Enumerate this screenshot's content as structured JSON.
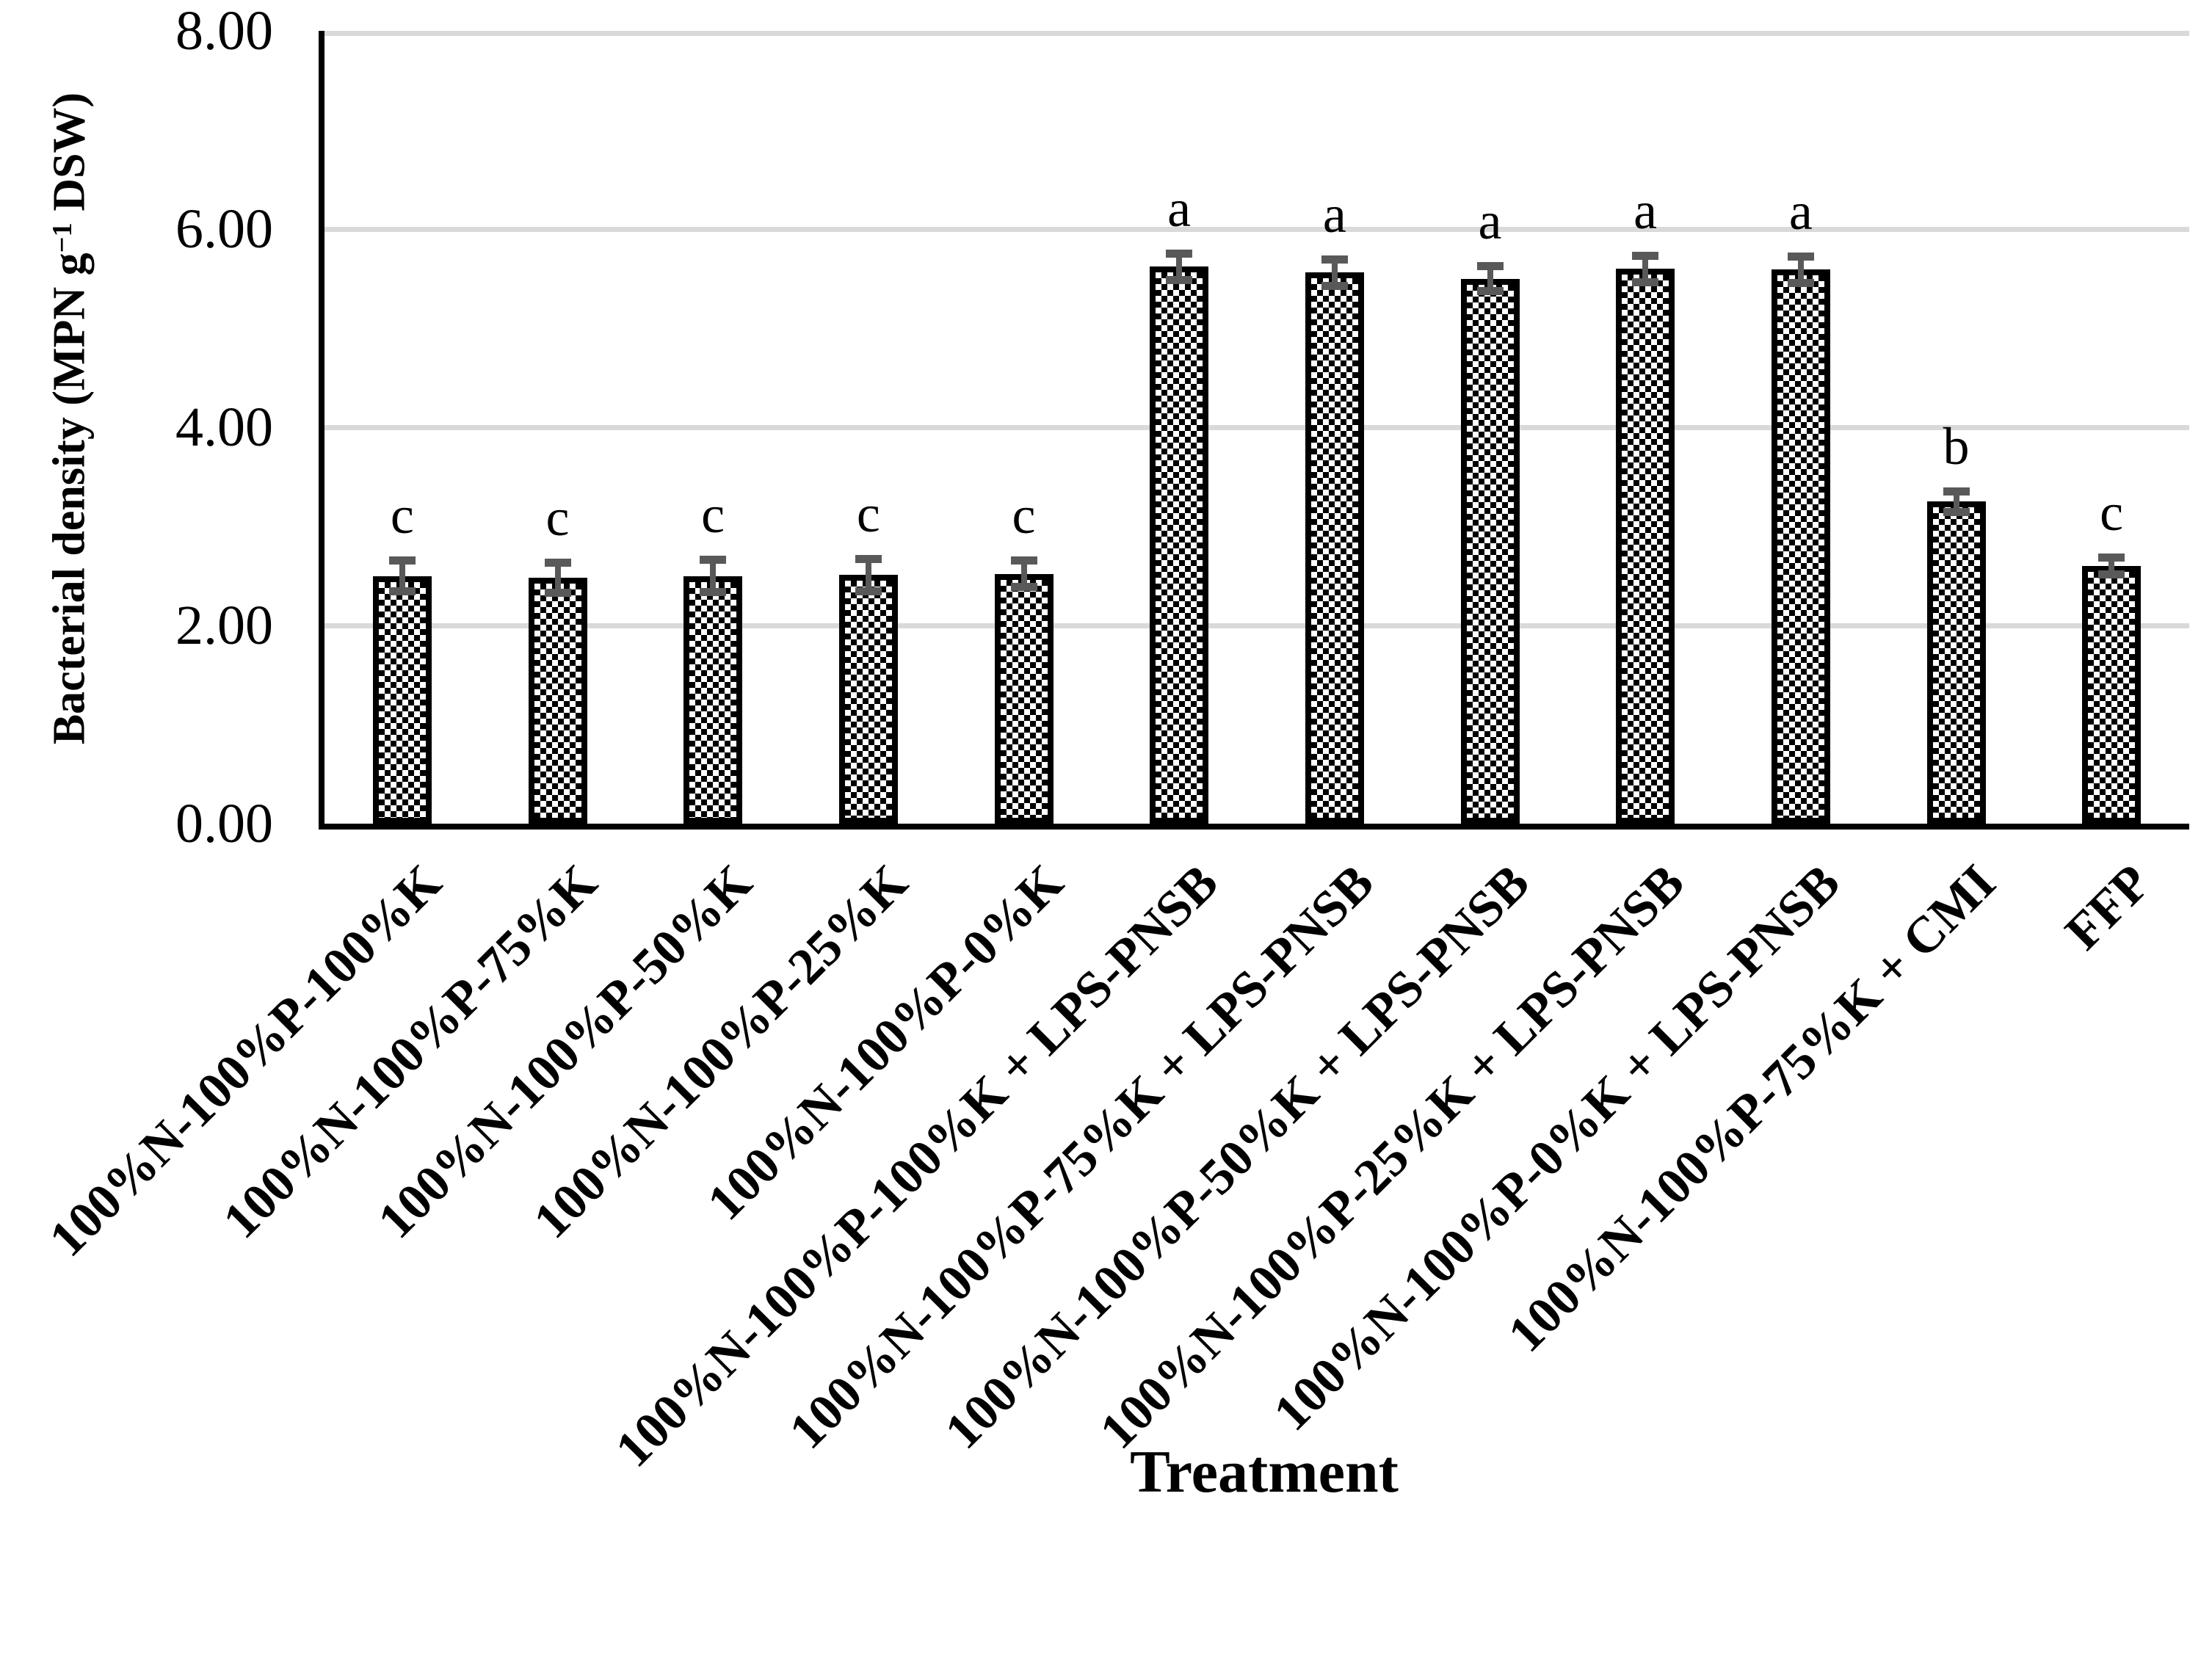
{
  "figure": {
    "y_axis": {
      "title_pre": "Bacterial density (MPN g",
      "title_sup": "−1",
      "title_post": " DSW)",
      "tick_labels": [
        "8.00",
        "6.00",
        "4.00",
        "2.00",
        "0.00"
      ],
      "tick_values": [
        8,
        6,
        4,
        2,
        0
      ]
    },
    "x_axis": {
      "title": "Treatment"
    }
  },
  "chart_data": {
    "type": "bar",
    "title": "",
    "xlabel": "Treatment",
    "ylabel": "Bacterial density (MPN g⁻¹ DSW)",
    "ylim": [
      0,
      8
    ],
    "ytick_step": 2,
    "grid": "horizontal gridlines at 2.00, 4.00, 6.00, 8.00",
    "legend": "none",
    "categories": [
      "100%N-100%P-100%K",
      "100%N-100%P-75%K",
      "100%N-100%P-50%K",
      "100%N-100%P-25%K",
      "100%N-100%P-0%K",
      "100%N-100%P-100%K + LPS-PNSB",
      "100%N-100%P-75%K + LPS-PNSB",
      "100%N-100%P-50%K + LPS-PNSB",
      "100%N-100%P-25%K + LPS-PNSB",
      "100%N-100%P-0%K + LPS-PNSB",
      "100%N-100%P-75%K + CMI",
      "FFP"
    ],
    "values": [
      2.5,
      2.48,
      2.5,
      2.51,
      2.52,
      5.62,
      5.56,
      5.5,
      5.6,
      5.59,
      3.25,
      2.6
    ],
    "error_bars": [
      0.12,
      0.12,
      0.13,
      0.13,
      0.1,
      0.1,
      0.1,
      0.09,
      0.1,
      0.1,
      0.07,
      0.05
    ],
    "significance_letters": [
      "c",
      "c",
      "c",
      "c",
      "c",
      "a",
      "a",
      "a",
      "a",
      "a",
      "b",
      "c"
    ],
    "bar_fill": "black-white checkerboard pattern",
    "bar_border_color": "#000000",
    "gridline_color": "#d9d9d9",
    "error_bar_color": "#595959",
    "text_color": "#000000"
  }
}
